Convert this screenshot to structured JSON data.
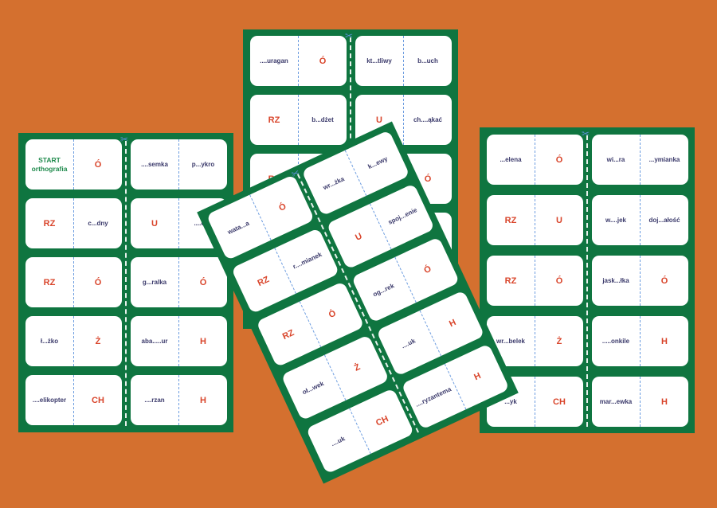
{
  "colors": {
    "background": "#d4702f",
    "sheet": "#0f7540",
    "word": "#3b3a6b",
    "letter": "#d9452b",
    "start": "#1f8a4c",
    "divider": "#6d9de0"
  },
  "icons": {
    "cut": "scissors-icon"
  },
  "sheets": [
    {
      "id": "sheet-left",
      "cards": [
        {
          "l": "START\northografia",
          "lt": "start",
          "r": "Ó",
          "rt": "letter"
        },
        {
          "l": "....semka",
          "lt": "word",
          "r": "p...ykro",
          "rt": "word"
        },
        {
          "l": "RZ",
          "lt": "letter",
          "r": "c...dny",
          "rt": "word"
        },
        {
          "l": "U",
          "lt": "letter",
          "r": "....odk",
          "rt": "word"
        },
        {
          "l": "RZ",
          "lt": "letter",
          "r": "Ó",
          "rt": "letter"
        },
        {
          "l": "g...ralka",
          "lt": "word",
          "r": "Ó",
          "rt": "letter"
        },
        {
          "l": "ł...żko",
          "lt": "word",
          "r": "Ż",
          "rt": "letter"
        },
        {
          "l": "aba.....ur",
          "lt": "word",
          "r": "H",
          "rt": "letter"
        },
        {
          "l": "....elikopter",
          "lt": "word",
          "r": "CH",
          "rt": "letter"
        },
        {
          "l": "....rzan",
          "lt": "word",
          "r": "H",
          "rt": "letter"
        }
      ]
    },
    {
      "id": "sheet-top",
      "cards": [
        {
          "l": "....uragan",
          "lt": "word",
          "r": "Ó",
          "rt": "letter"
        },
        {
          "l": "kt...tliwy",
          "lt": "word",
          "r": "b...uch",
          "rt": "word"
        },
        {
          "l": "RZ",
          "lt": "letter",
          "r": "b...dżet",
          "rt": "word"
        },
        {
          "l": "U",
          "lt": "letter",
          "r": "ch....ąkać",
          "rt": "word"
        },
        {
          "l": "RZ",
          "lt": "letter",
          "r": "",
          "rt": "word"
        },
        {
          "l": "",
          "lt": "word",
          "r": "Ó",
          "rt": "letter"
        },
        {
          "l": "",
          "lt": "word",
          "r": "",
          "rt": "word"
        },
        {
          "l": "",
          "lt": "word",
          "r": "",
          "rt": "word"
        },
        {
          "l": "",
          "lt": "word",
          "r": "",
          "rt": "word"
        },
        {
          "l": "",
          "lt": "word",
          "r": "",
          "rt": "word"
        }
      ]
    },
    {
      "id": "sheet-right",
      "cards": [
        {
          "l": "...elena",
          "lt": "word",
          "r": "Ó",
          "rt": "letter"
        },
        {
          "l": "wi...ra",
          "lt": "word",
          "r": "...ymianka",
          "rt": "word"
        },
        {
          "l": "RZ",
          "lt": "letter",
          "r": "U",
          "rt": "letter"
        },
        {
          "l": "w....jek",
          "lt": "word",
          "r": "doj...ałość",
          "rt": "word"
        },
        {
          "l": "RZ",
          "lt": "letter",
          "r": "Ó",
          "rt": "letter"
        },
        {
          "l": "jask...łka",
          "lt": "word",
          "r": "Ó",
          "rt": "letter"
        },
        {
          "l": "wr...belek",
          "lt": "word",
          "r": "Ż",
          "rt": "letter"
        },
        {
          "l": ".....onkile",
          "lt": "word",
          "r": "H",
          "rt": "letter"
        },
        {
          "l": "...yk",
          "lt": "word",
          "r": "CH",
          "rt": "letter"
        },
        {
          "l": "mar...ewka",
          "lt": "word",
          "r": "H",
          "rt": "letter"
        }
      ]
    },
    {
      "id": "sheet-rot",
      "cards": [
        {
          "l": "wata...a",
          "lt": "word",
          "r": "Ó",
          "rt": "letter"
        },
        {
          "l": "wr...żka",
          "lt": "word",
          "r": "k...ewy",
          "rt": "word"
        },
        {
          "l": "RZ",
          "lt": "letter",
          "r": "r....mianek",
          "rt": "word"
        },
        {
          "l": "U",
          "lt": "letter",
          "r": "spoj...enie",
          "rt": "word"
        },
        {
          "l": "RZ",
          "lt": "letter",
          "r": "Ó",
          "rt": "letter"
        },
        {
          "l": "og...rek",
          "lt": "word",
          "r": "Ó",
          "rt": "letter"
        },
        {
          "l": "oł...wek",
          "lt": "word",
          "r": "Ż",
          "rt": "letter"
        },
        {
          "l": "....uk",
          "lt": "word",
          "r": "H",
          "rt": "letter"
        },
        {
          "l": "....uk",
          "lt": "word",
          "r": "CH",
          "rt": "letter"
        },
        {
          "l": "....ryzantema",
          "lt": "word",
          "r": "H",
          "rt": "letter"
        }
      ]
    }
  ]
}
